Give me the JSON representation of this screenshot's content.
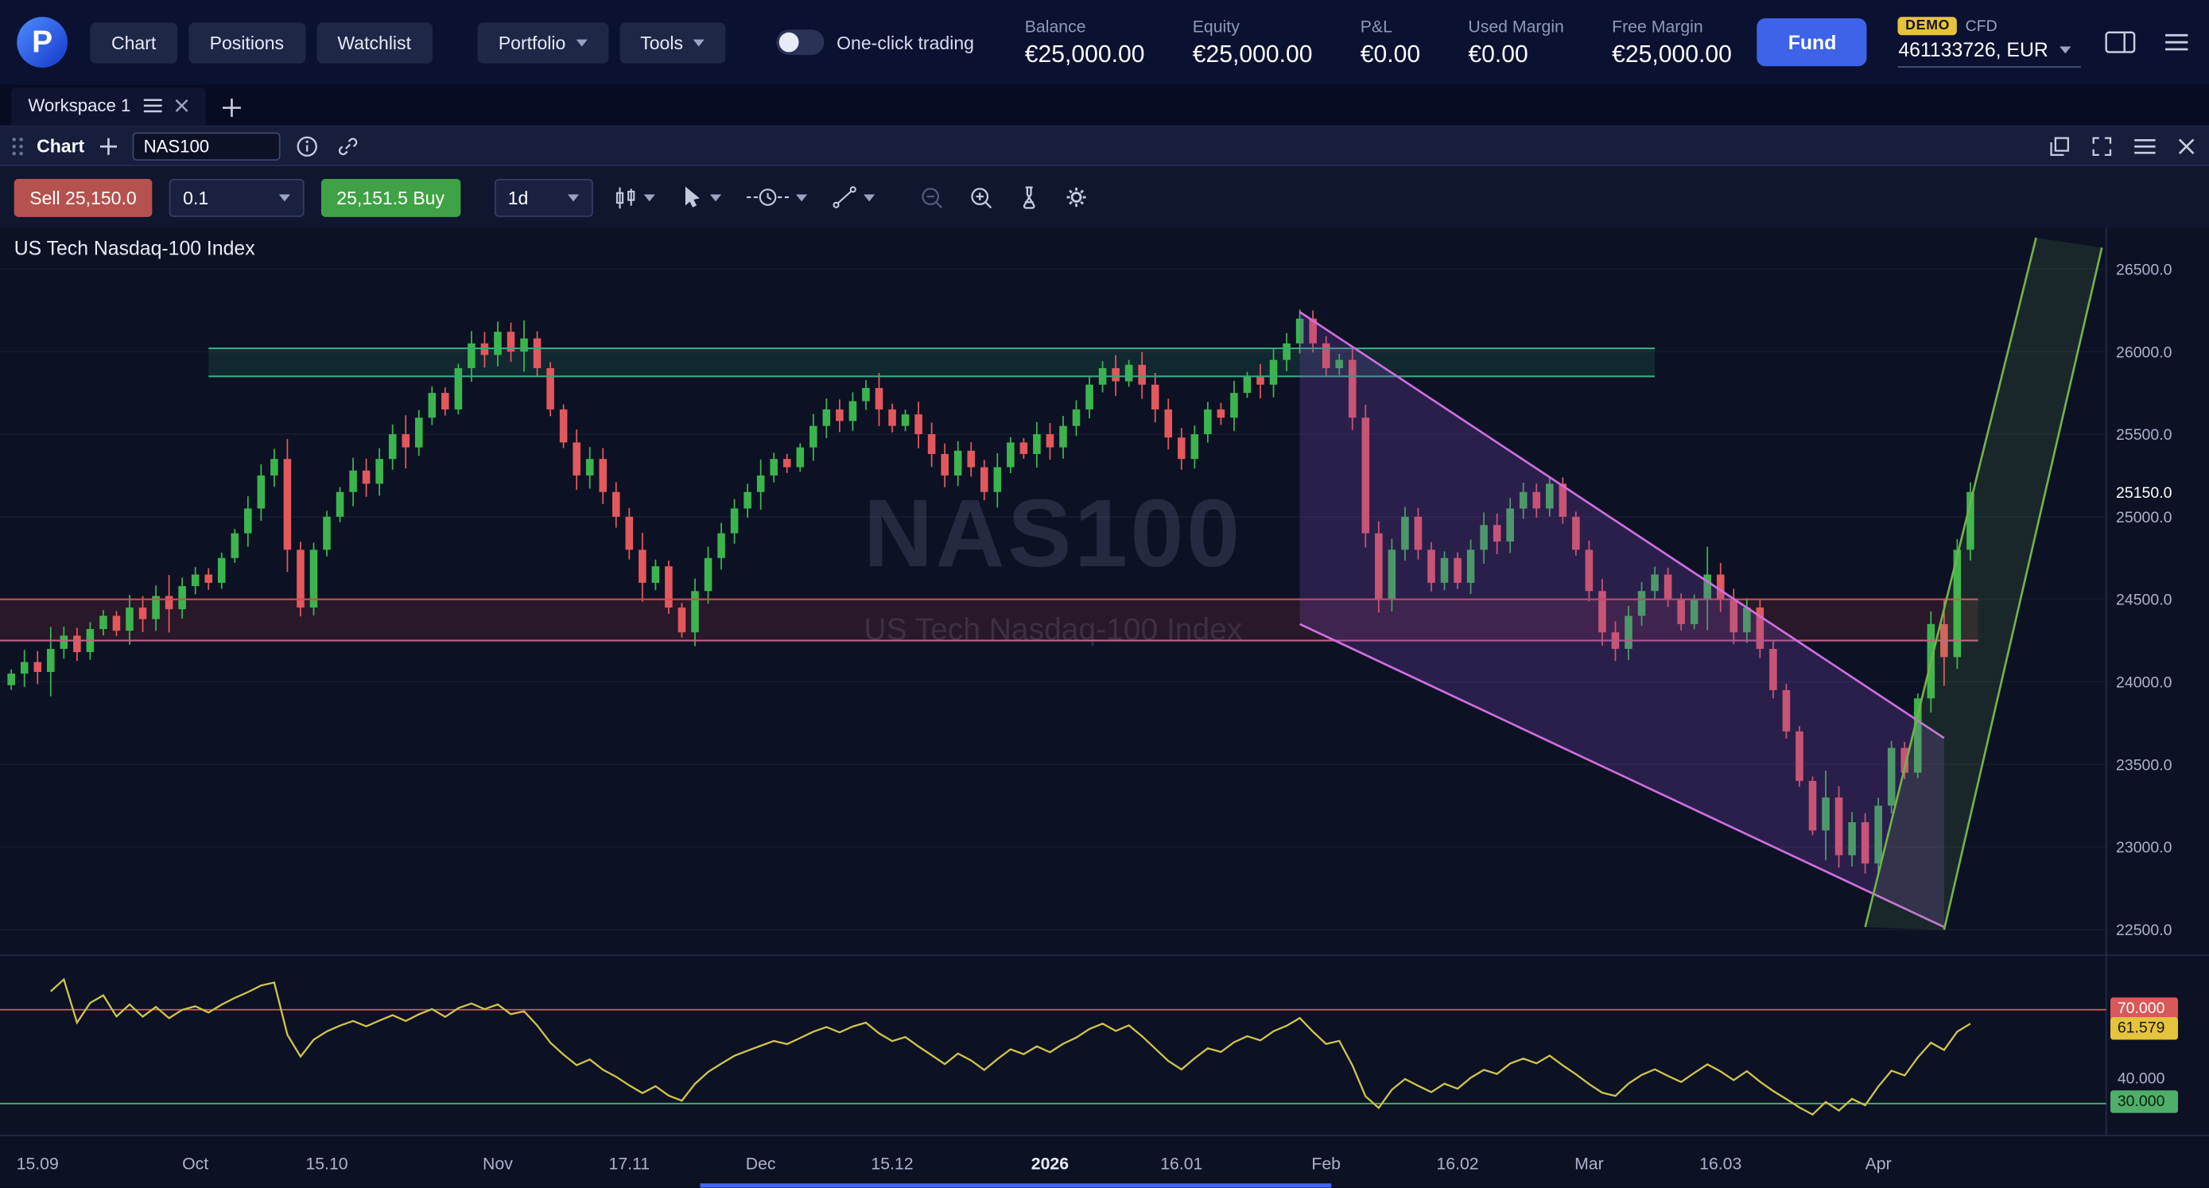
{
  "topbar": {
    "logo_letter": "P",
    "nav": [
      "Chart",
      "Positions",
      "Watchlist"
    ],
    "menus": [
      {
        "label": "Portfolio"
      },
      {
        "label": "Tools"
      }
    ],
    "one_click_label": "One-click trading",
    "stats": [
      {
        "label": "Balance",
        "value": "€25,000.00"
      },
      {
        "label": "Equity",
        "value": "€25,000.00"
      },
      {
        "label": "P&L",
        "value": "€0.00"
      },
      {
        "label": "Used Margin",
        "value": "€0.00"
      },
      {
        "label": "Free Margin",
        "value": "€25,000.00"
      }
    ],
    "fund_button": "Fund",
    "account": {
      "badge": "DEMO",
      "type": "CFD",
      "id": "461133726, EUR"
    }
  },
  "workspace": {
    "tab": "Workspace 1"
  },
  "chart_window": {
    "title": "Chart",
    "symbol": "NAS100"
  },
  "trade_toolbar": {
    "sell_label": "Sell 25,150.0",
    "qty": "0.1",
    "buy_label": "25,151.5 Buy",
    "timeframe": "1d"
  },
  "chart": {
    "title": "US Tech Nasdaq-100 Index",
    "watermark_symbol": "NAS100",
    "watermark_name": "US Tech Nasdaq-100 Index"
  },
  "icons": {
    "topbar": [
      "app-logo",
      "panel-layout-icon",
      "menu-icon"
    ],
    "workspace": [
      "menu-icon",
      "close-icon",
      "plus-icon"
    ],
    "chart_header": [
      "drag-grip-icon",
      "plus-icon",
      "info-icon",
      "link-icon",
      "popout-icon",
      "fullscreen-icon",
      "menu-icon",
      "close-icon"
    ],
    "toolbar": [
      "candle-style-icon",
      "cursor-icon",
      "session-clock-icon",
      "trendline-icon",
      "zoom-out-icon",
      "zoom-in-icon",
      "flask-icon",
      "gear-icon"
    ]
  },
  "chart_data": {
    "type": "candlestick",
    "symbol": "NAS100",
    "title": "US Tech Nasdaq-100 Index",
    "first_open": 23980,
    "closes": [
      24050,
      24120,
      24060,
      24200,
      24280,
      24180,
      24320,
      24400,
      24310,
      24450,
      24380,
      24520,
      24440,
      24580,
      24650,
      24600,
      24750,
      24900,
      25050,
      25250,
      25350,
      24800,
      24450,
      24800,
      25000,
      25150,
      25280,
      25200,
      25350,
      25500,
      25420,
      25600,
      25750,
      25650,
      25900,
      26050,
      25980,
      26120,
      26000,
      26080,
      25900,
      25650,
      25450,
      25250,
      25350,
      25150,
      25000,
      24800,
      24600,
      24700,
      24450,
      24300,
      24550,
      24750,
      24900,
      25050,
      25150,
      25250,
      25350,
      25300,
      25420,
      25550,
      25650,
      25580,
      25700,
      25780,
      25650,
      25550,
      25620,
      25500,
      25380,
      25250,
      25400,
      25300,
      25150,
      25300,
      25450,
      25380,
      25500,
      25420,
      25550,
      25650,
      25800,
      25900,
      25820,
      25920,
      25800,
      25650,
      25480,
      25350,
      25500,
      25650,
      25600,
      25750,
      25850,
      25800,
      25950,
      26050,
      26200,
      26050,
      25900,
      25950,
      25600,
      24900,
      24500,
      24800,
      25000,
      24800,
      24600,
      24750,
      24600,
      24800,
      24950,
      24850,
      25050,
      25150,
      25050,
      25200,
      25000,
      24800,
      24550,
      24300,
      24200,
      24400,
      24550,
      24650,
      24500,
      24350,
      24500,
      24650,
      24500,
      24300,
      24450,
      24200,
      23950,
      23700,
      23400,
      23100,
      23300,
      22950,
      23150,
      22900,
      23250,
      23600,
      23450,
      23900,
      24350,
      24150,
      24800,
      25150
    ],
    "y_ticks": [
      26500,
      26000,
      25500,
      25000,
      24500,
      24000,
      23500,
      23000,
      22500
    ],
    "current_price": 25150.0,
    "x_ticks": [
      {
        "i": 2,
        "label": "15.09"
      },
      {
        "i": 14,
        "label": "Oct"
      },
      {
        "i": 24,
        "label": "15.10"
      },
      {
        "i": 37,
        "label": "Nov"
      },
      {
        "i": 47,
        "label": "17.11"
      },
      {
        "i": 57,
        "label": "Dec"
      },
      {
        "i": 67,
        "label": "15.12"
      },
      {
        "i": 79,
        "label": "2026",
        "major": true
      },
      {
        "i": 89,
        "label": "16.01"
      },
      {
        "i": 100,
        "label": "Feb"
      },
      {
        "i": 110,
        "label": "16.02"
      },
      {
        "i": 120,
        "label": "Mar"
      },
      {
        "i": 130,
        "label": "16.03"
      },
      {
        "i": 142,
        "label": "Apr"
      }
    ],
    "zones": [
      {
        "name": "supply-zone",
        "i0": 15,
        "i1": 125,
        "p0": 25850,
        "p1": 26020,
        "fill": "rgba(46,160,118,0.16)",
        "stroke": "#39a87e",
        "stroke2": "#39a87e"
      },
      {
        "name": "demand-zone",
        "i0": -1,
        "i1": 149.6,
        "p0": 24250,
        "p1": 24500,
        "fill": "rgba(190,60,70,0.16)",
        "stroke": "#cf4d4d",
        "stroke2": "#c25f86"
      }
    ],
    "channels": [
      {
        "name": "descending-channel",
        "polygon": [
          [
            98,
            26240
          ],
          [
            147,
            23660
          ],
          [
            147,
            22515
          ],
          [
            98,
            24350
          ]
        ],
        "fill": "rgba(128,72,190,0.26)",
        "stroke": "#cf6fe0",
        "edges": [
          [
            0,
            1
          ],
          [
            3,
            2
          ]
        ]
      },
      {
        "name": "ascending-channel",
        "polygon": [
          [
            141,
            22515
          ],
          [
            154,
            26690
          ],
          [
            159,
            26630
          ],
          [
            147,
            22498
          ]
        ],
        "fill": "rgba(118,196,82,0.13)",
        "stroke": "#74b14c",
        "edges": [
          [
            0,
            1
          ],
          [
            3,
            2
          ]
        ]
      }
    ],
    "rsi": {
      "period": 14,
      "upper": 70,
      "mid": 40,
      "lower": 30,
      "current": 61.579,
      "labels": {
        "upper": "70.000",
        "current": "61.579",
        "mid": "40.000",
        "lower": "30.000"
      }
    }
  },
  "colors": {
    "accent_blue": "#3e63e8",
    "sell_red": "#b5524f",
    "buy_green": "#3fa246",
    "candle_up": "#3cb44e",
    "candle_down": "#e2585c",
    "axis_text": "#aab3cc",
    "rsi_line": "#cfc44c",
    "rsi_upper_line": "#d95858",
    "rsi_lower_line": "#4fae6a",
    "badge_yellow": "#e6c33c"
  }
}
